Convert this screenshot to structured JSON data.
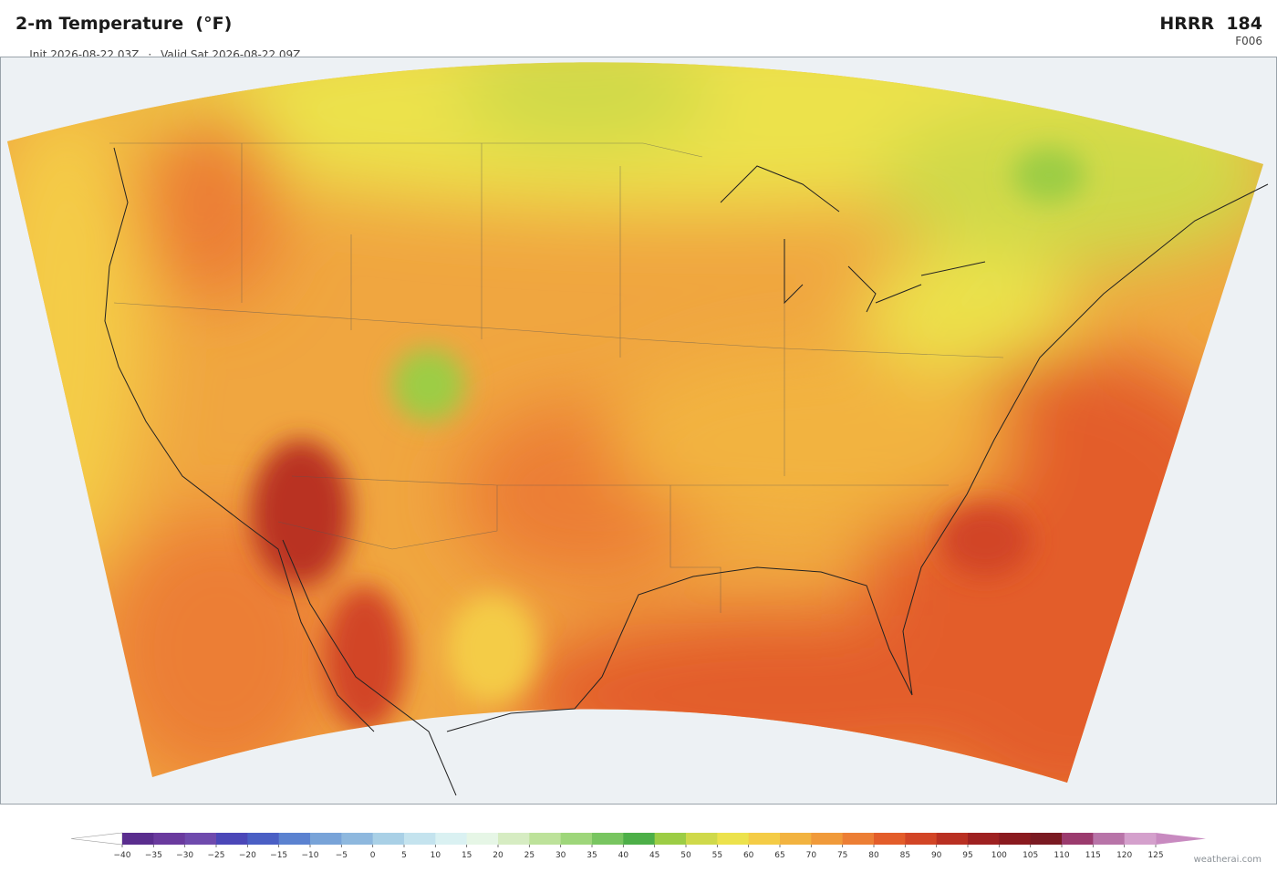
{
  "header": {
    "title": "2-m Temperature  (°F)",
    "init": "Init 2026-08-22 03Z",
    "separator": "·",
    "valid": "Valid Sat 2026-08-22 09Z",
    "model": "HRRR  184",
    "forecast_hour": "F006"
  },
  "colorbar": {
    "ticks": [
      {
        "value": -40,
        "label": "−40"
      },
      {
        "value": -35,
        "label": "−35"
      },
      {
        "value": -30,
        "label": "−30"
      },
      {
        "value": -25,
        "label": "−25"
      },
      {
        "value": -20,
        "label": "−20"
      },
      {
        "value": -15,
        "label": "−15"
      },
      {
        "value": -10,
        "label": "−10"
      },
      {
        "value": -5,
        "label": "−5"
      },
      0,
      5,
      10,
      15,
      20,
      25,
      30,
      35,
      40,
      45,
      50,
      55,
      60,
      65,
      70,
      75,
      80,
      85,
      90,
      95,
      100,
      105,
      110,
      115,
      120,
      125
    ],
    "colors": [
      "#5a2d8e",
      "#6a3a9e",
      "#6f4aad",
      "#4b47b8",
      "#4a5fc4",
      "#5b82d0",
      "#78a3d8",
      "#8eb8de",
      "#a9d0e6",
      "#c4e3ee",
      "#daf1f2",
      "#e6f6e6",
      "#d6ecc2",
      "#bde29a",
      "#9ed67a",
      "#78c560",
      "#4daf48",
      "#9ccd45",
      "#cfd94a",
      "#ece24c",
      "#f4cc46",
      "#f2b340",
      "#f09a3a",
      "#ec7e35",
      "#e35d2a",
      "#d24526",
      "#b93022",
      "#9e2121",
      "#8a1a1f",
      "#7a1a22",
      "#9b3b6e",
      "#b874a8",
      "#d4a0cc"
    ],
    "under_color": "#ffffff",
    "over_color": "#c88ac0"
  },
  "footer": {
    "credit": "weatherai.com"
  }
}
